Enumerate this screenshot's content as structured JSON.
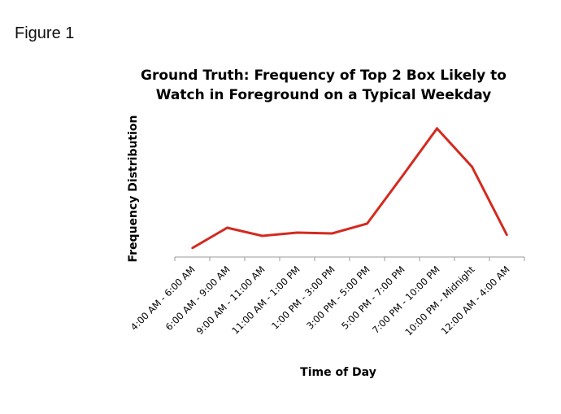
{
  "figure_label": "Figure 1",
  "chart_data": {
    "type": "line",
    "title": [
      "Ground Truth: Frequency of Top 2 Box Likely to",
      "Watch in Foreground on a Typical Weekday"
    ],
    "xlabel": "Time of Day",
    "ylabel": "Frequency Distribution",
    "categories": [
      "4:00 AM - 6:00 AM",
      "6:00 AM - 9:00 AM",
      "9:00 AM - 11:00 AM",
      "11:00 AM - 1:00 PM",
      "1:00 PM - 3:00 PM",
      "3:00 PM - 5:00 PM",
      "5:00 PM - 7:00 PM",
      "7:00 PM - 10:00 PM",
      "10:00 PM - Midnight",
      "12:00 AM - 4:00 AM"
    ],
    "series": [
      {
        "name": "Frequency",
        "color": "#d42a20",
        "values": [
          11,
          36,
          26,
          30,
          29,
          41,
          99,
          158,
          111,
          27
        ]
      }
    ],
    "ylim": [
      0,
      160
    ],
    "grid": false,
    "legend": "none",
    "note": "relative values, y-axis unlabeled"
  }
}
